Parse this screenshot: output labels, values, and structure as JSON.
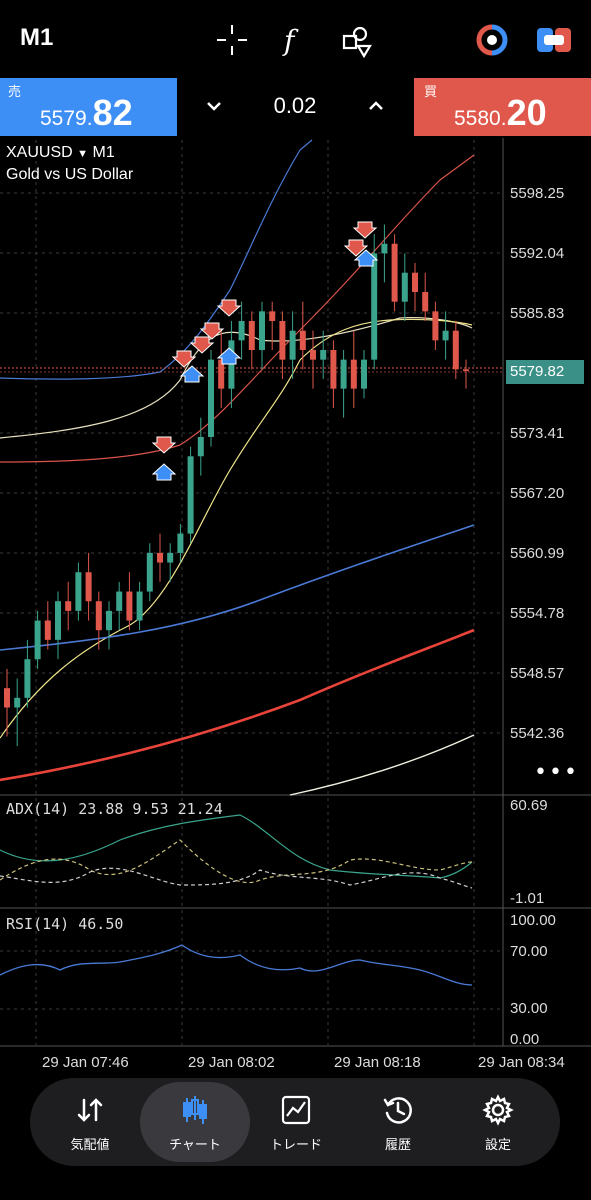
{
  "toolbar": {
    "timeframe": "M1",
    "icons": [
      "crosshair-icon",
      "function-icon",
      "objects-icon",
      "one-click-trading-icon",
      "trade-toggle-icon"
    ]
  },
  "trade": {
    "sell_label": "売",
    "sell_price_small": "5579.",
    "sell_price_big": "82",
    "volume": "0.02",
    "buy_label": "買",
    "buy_price_small": "5580.",
    "buy_price_big": "20",
    "colors": {
      "sell": "#3d8ef5",
      "buy": "#e0574b"
    }
  },
  "chart": {
    "symbol": "XAUUSD",
    "symbol_arrow": "▼",
    "timeframe": "M1",
    "description": "Gold vs US Dollar",
    "current_price": "5579.82",
    "price_axis": [
      "5598.25",
      "5592.04",
      "5585.83",
      "5573.41",
      "5567.20",
      "5560.99",
      "5554.78",
      "5548.57",
      "5542.36"
    ],
    "time_axis": [
      "29 Jan 07:46",
      "29 Jan 08:02",
      "29 Jan 08:18",
      "29 Jan 08:34"
    ],
    "more": "•••",
    "adx": {
      "label": "ADX(14) 23.88 9.53 21.24",
      "max": "60.69",
      "min": "-1.01"
    },
    "rsi": {
      "label": "RSI(14) 46.50",
      "levels": [
        "100.00",
        "70.00",
        "30.00",
        "0.00"
      ]
    },
    "colors": {
      "bull": "#3aa58c",
      "bear": "#e0574b",
      "grid": "#3a3a3a"
    }
  },
  "chart_data": {
    "type": "candlestick",
    "symbol": "XAUUSD",
    "ylim": [
      5536,
      5604
    ],
    "candles": [
      [
        5547,
        5549,
        5542,
        5545
      ],
      [
        5545,
        5548,
        5541,
        5546
      ],
      [
        5546,
        5552,
        5545,
        5550
      ],
      [
        5550,
        5555,
        5549,
        5554
      ],
      [
        5554,
        5556,
        5551,
        5552
      ],
      [
        5552,
        5557,
        5550,
        5556
      ],
      [
        5556,
        5558,
        5553,
        5555
      ],
      [
        5555,
        5560,
        5554,
        5559
      ],
      [
        5559,
        5561,
        5554,
        5556
      ],
      [
        5556,
        5557,
        5551,
        5553
      ],
      [
        5553,
        5556,
        5551,
        5555
      ],
      [
        5555,
        5558,
        5553,
        5557
      ],
      [
        5557,
        5559,
        5553,
        5554
      ],
      [
        5554,
        5558,
        5553,
        5557
      ],
      [
        5557,
        5562,
        5556,
        5561
      ],
      [
        5561,
        5563,
        5558,
        5560
      ],
      [
        5560,
        5562,
        5558,
        5561
      ],
      [
        5561,
        5564,
        5560,
        5563
      ],
      [
        5563,
        5572,
        5562,
        5571
      ],
      [
        5571,
        5575,
        5569,
        5573
      ],
      [
        5573,
        5582,
        5572,
        5581
      ],
      [
        5581,
        5584,
        5576,
        5578
      ],
      [
        5578,
        5585,
        5576,
        5583
      ],
      [
        5583,
        5587,
        5581,
        5585
      ],
      [
        5585,
        5586,
        5580,
        5582
      ],
      [
        5582,
        5587,
        5580,
        5586
      ],
      [
        5586,
        5587,
        5582,
        5585
      ],
      [
        5585,
        5586,
        5579,
        5581
      ],
      [
        5581,
        5586,
        5579,
        5584
      ],
      [
        5584,
        5587,
        5580,
        5582
      ],
      [
        5582,
        5584,
        5578,
        5581
      ],
      [
        5581,
        5584,
        5579,
        5582
      ],
      [
        5582,
        5583,
        5576,
        5578
      ],
      [
        5578,
        5582,
        5575,
        5581
      ],
      [
        5581,
        5584,
        5576,
        5578
      ],
      [
        5578,
        5582,
        5577,
        5581
      ],
      [
        5581,
        5594,
        5580,
        5592
      ],
      [
        5592,
        5595,
        5589,
        5593
      ],
      [
        5593,
        5594,
        5586,
        5587
      ],
      [
        5587,
        5592,
        5585,
        5590
      ],
      [
        5590,
        5591,
        5586,
        5588
      ],
      [
        5588,
        5590,
        5585,
        5586
      ],
      [
        5586,
        5587,
        5582,
        5583
      ],
      [
        5583,
        5586,
        5581,
        5584
      ],
      [
        5584,
        5585,
        5579,
        5580
      ],
      [
        5580,
        5581,
        5578,
        5579.82
      ]
    ]
  }
}
